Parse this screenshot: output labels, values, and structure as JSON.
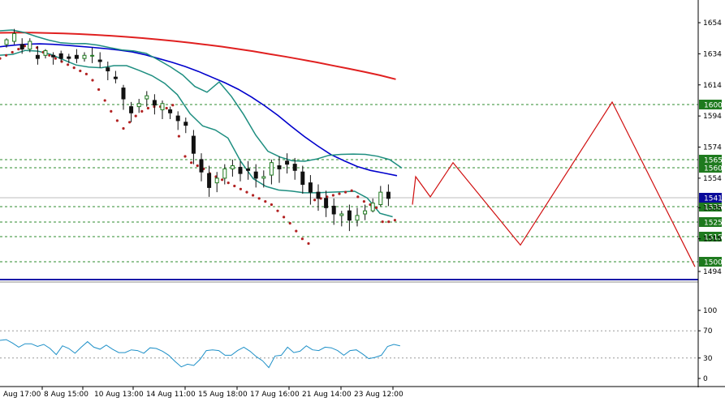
{
  "chart_data": [
    {
      "panel": "price",
      "type": "candlestick",
      "ylim": [
        1488,
        1662
      ],
      "y_ticks": [
        1654,
        1634,
        1614,
        1594,
        1574,
        1554,
        1535,
        1515,
        1494
      ],
      "x_tick_labels": [
        "Aug 17:00",
        "8 Aug 15:00",
        "10 Aug 13:00",
        "14 Aug 11:00",
        "15 Aug 18:00",
        "17 Aug 16:00",
        "21 Aug 14:00",
        "23 Aug 12:00"
      ],
      "levels": [
        {
          "label": "1600",
          "value": 1600,
          "kind": "support-resistance"
        },
        {
          "label": "1565",
          "value": 1565,
          "kind": "support-resistance"
        },
        {
          "label": "1560",
          "value": 1560,
          "kind": "support-resistance"
        },
        {
          "label": "1535",
          "value": 1535,
          "kind": "support-resistance"
        },
        {
          "label": "1525",
          "value": 1525,
          "kind": "support-resistance"
        },
        {
          "label": "1515",
          "value": 1515,
          "kind": "support-resistance"
        },
        {
          "label": "1500",
          "value": 1500,
          "kind": "support-resistance"
        }
      ],
      "current_price": {
        "label": "1541",
        "value": 1541
      },
      "series": [
        {
          "kind": "moving-average",
          "values": [
            1647.5,
            1647.6,
            1647.6,
            1647.4,
            1647.1,
            1646.7,
            1646.2,
            1645.6,
            1644.9,
            1644.1,
            1643.2,
            1642.2,
            1641.1,
            1639.9,
            1638.6,
            1637.1,
            1635.6,
            1633.9,
            1632.2,
            1630.4,
            1628.5,
            1626.5,
            1624.5,
            1622.4,
            1620.2,
            1617.6
          ]
        },
        {
          "kind": "moving-average",
          "values": [
            1638.5,
            1639.5,
            1640.2,
            1640.4,
            1640.1,
            1639.5,
            1638.8,
            1638.1,
            1637.3,
            1636.4,
            1635.2,
            1633.3,
            1630.9,
            1628.5,
            1625.8,
            1622.6,
            1619.0,
            1615.4,
            1611.2,
            1606.2,
            1600.6,
            1594.4,
            1587.4,
            1580.8,
            1574.8,
            1569.2,
            1565.2,
            1561.5,
            1559.0,
            1557.3,
            1555.6
          ]
        },
        {
          "kind": "bollinger-upper",
          "values": [
            1648.8,
            1649.3,
            1647.7,
            1645.1,
            1642.8,
            1641.1,
            1640.5,
            1640.6,
            1639.6,
            1638.0,
            1636.5,
            1635.8,
            1634.3,
            1630.1,
            1625.6,
            1620.4,
            1613.0,
            1609.3,
            1615.9,
            1606.6,
            1595.0,
            1581.7,
            1571.3,
            1567.6,
            1565.2,
            1564.9,
            1566.3,
            1568.7,
            1569.3,
            1569.5,
            1569.3,
            1568.1,
            1565.9,
            1560.5
          ]
        },
        {
          "kind": "bollinger-lower",
          "values": [
            1633.1,
            1633.6,
            1636.2,
            1635.7,
            1633.7,
            1630.2,
            1626.8,
            1625.5,
            1625.0,
            1626.4,
            1626.4,
            1623.3,
            1619.9,
            1615.0,
            1607.7,
            1595.6,
            1587.6,
            1585.0,
            1579.8,
            1564.9,
            1553.6,
            1548.7,
            1546.4,
            1545.7,
            1544.6,
            1544.6,
            1544.9,
            1545.3,
            1545.6,
            1541.2,
            1531.4,
            1529.2
          ]
        },
        {
          "kind": "parabolic-sar",
          "values": [
            1631,
            1633,
            1635,
            1637,
            1639,
            1640,
            1638,
            1635,
            1633,
            1631,
            1629,
            1627,
            1625,
            1623,
            1621,
            1617,
            1611,
            1604,
            1597,
            1591,
            1586,
            1590,
            1594,
            1597,
            1599,
            1600,
            1600,
            1599,
            1601,
            1581,
            1568,
            1564,
            1562,
            1560,
            1557,
            1555,
            1553,
            1551,
            1549,
            1547,
            1545,
            1543,
            1541,
            1539,
            1537,
            1533,
            1529,
            1525,
            1520,
            1515,
            1512,
            1540,
            1541,
            1542,
            1543,
            1544,
            1545,
            1546,
            1542,
            1539,
            1537,
            1535,
            1526,
            1526,
            1527
          ]
        }
      ],
      "forecast_path": [
        1537,
        1555,
        1542,
        1564,
        1511,
        1603,
        1497
      ],
      "candles": [
        [
          1640,
          1644,
          1643,
          1638
        ],
        [
          1642,
          1650,
          1647,
          1640
        ],
        [
          1640,
          1644,
          1637,
          1634
        ],
        [
          1637,
          1644,
          1642,
          1635
        ],
        [
          1633,
          1639,
          1631,
          1627
        ],
        [
          1633,
          1637,
          1636,
          1631
        ],
        [
          1633,
          1635,
          1632,
          1627
        ],
        [
          1634,
          1636,
          1631,
          1629
        ],
        [
          1632,
          1634,
          1631,
          1628
        ],
        [
          1633,
          1637,
          1631,
          1628
        ],
        [
          1631,
          1635,
          1633,
          1629
        ],
        [
          1633,
          1638,
          1633,
          1628
        ],
        [
          1630,
          1635,
          1629,
          1625
        ],
        [
          1625,
          1629,
          1623,
          1617
        ],
        [
          1619,
          1623,
          1618,
          1615
        ],
        [
          1612,
          1614,
          1605,
          1598
        ],
        [
          1600,
          1603,
          1596,
          1590
        ],
        [
          1600,
          1605,
          1602,
          1596
        ],
        [
          1605,
          1610,
          1607,
          1600
        ],
        [
          1604,
          1608,
          1601,
          1595
        ],
        [
          1598,
          1604,
          1602,
          1592
        ],
        [
          1598,
          1600,
          1596,
          1592
        ],
        [
          1594,
          1597,
          1591,
          1585
        ],
        [
          1590,
          1593,
          1588,
          1583
        ],
        [
          1581,
          1585,
          1570,
          1563
        ],
        [
          1566,
          1570,
          1558,
          1552
        ],
        [
          1557,
          1562,
          1548,
          1542
        ],
        [
          1551,
          1558,
          1554,
          1545
        ],
        [
          1554,
          1563,
          1560,
          1550
        ],
        [
          1560,
          1566,
          1562,
          1555
        ],
        [
          1561,
          1565,
          1557,
          1552
        ],
        [
          1560,
          1565,
          1559,
          1553
        ],
        [
          1558,
          1563,
          1554,
          1548
        ],
        [
          1554,
          1559,
          1555,
          1548
        ],
        [
          1556,
          1566,
          1564,
          1550
        ],
        [
          1562,
          1568,
          1560,
          1551
        ],
        [
          1565,
          1570,
          1563,
          1557
        ],
        [
          1563,
          1567,
          1559,
          1553
        ],
        [
          1558,
          1562,
          1550,
          1544
        ],
        [
          1551,
          1556,
          1545,
          1537
        ],
        [
          1545,
          1550,
          1541,
          1533
        ],
        [
          1541,
          1546,
          1535,
          1529
        ],
        [
          1536,
          1541,
          1531,
          1524
        ],
        [
          1530,
          1533,
          1531,
          1523
        ],
        [
          1533,
          1537,
          1527,
          1520
        ],
        [
          1527,
          1535,
          1530,
          1523
        ],
        [
          1531,
          1537,
          1533,
          1527
        ],
        [
          1533,
          1541,
          1538,
          1532
        ],
        [
          1537,
          1549,
          1545,
          1536
        ],
        [
          1545,
          1550,
          1541,
          1536
        ]
      ]
    },
    {
      "panel": "oscillator",
      "type": "line",
      "ylim": [
        0,
        100
      ],
      "y_ticks": [
        100,
        70,
        30,
        0
      ],
      "levels": [
        70,
        30
      ],
      "values": [
        56,
        57,
        52,
        46,
        51,
        51,
        47,
        50,
        44,
        35,
        48,
        44,
        37,
        46,
        54,
        46,
        43,
        49,
        43,
        38,
        38,
        42,
        41,
        37,
        45,
        44,
        40,
        34,
        25,
        17,
        21,
        19,
        28,
        41,
        42,
        41,
        34,
        34,
        41,
        46,
        40,
        32,
        26,
        16,
        33,
        34,
        46,
        38,
        40,
        48,
        42,
        41,
        46,
        45,
        41,
        34,
        41,
        42,
        36,
        29,
        31,
        34,
        47,
        50,
        48
      ]
    }
  ]
}
